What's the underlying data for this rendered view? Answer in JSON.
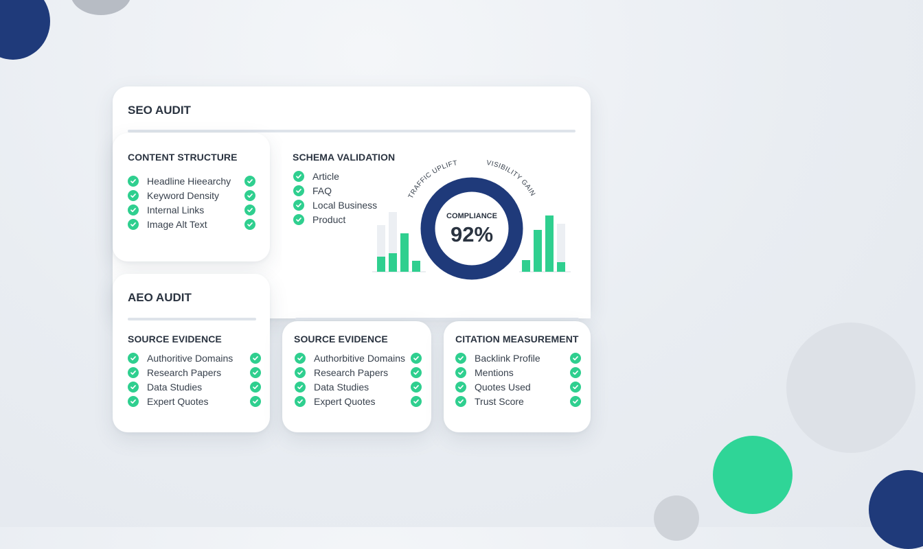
{
  "seo_audit": {
    "title": "SEO AUDIT",
    "content_structure": {
      "title": "CONTENT STRUCTURE",
      "items": [
        "Headline Hieearchy",
        "Keyword Density",
        "Internal Links",
        "Image Alt Text"
      ]
    },
    "schema_validation": {
      "title": "SCHEMA VALIDATION",
      "items": [
        "Article",
        "FAQ",
        "Local Business",
        "Product"
      ]
    }
  },
  "compliance_widget": {
    "label": "COMPLIANCE",
    "value_text": "92%",
    "left_arc_label": "TRAFFIC UPLIFT",
    "right_arc_label": "VISIBILITY GAIN",
    "donut_percent": 92,
    "colors": {
      "primary": "#1f3a7a",
      "accent": "#2fcf8f",
      "muted": "#e7eaef"
    }
  },
  "aeo_audit": {
    "title": "AEO AUDIT",
    "source_evidence_left": {
      "title": "SOURCE EVIDENCE",
      "items": [
        "Authoritive Domains",
        "Research Papers",
        "Data Studies",
        "Expert Quotes"
      ]
    },
    "source_evidence_center": {
      "title": "SOURCE EVIDENCE",
      "items": [
        "Authorbitive Domains",
        "Research Papers",
        "Data Studies",
        "Expert Quotes"
      ]
    },
    "citation_measurement": {
      "title": "CITATION MEASUREMENT",
      "items": [
        "Backlink Profile",
        "Mentions",
        "Quotes Used",
        "Trust Score"
      ]
    }
  },
  "icons": {
    "check": "check-circle-icon"
  },
  "colors": {
    "background": "#eaeef3",
    "green": "#2fcf8f",
    "navy": "#1f3a7a",
    "text": "#2a3340"
  }
}
